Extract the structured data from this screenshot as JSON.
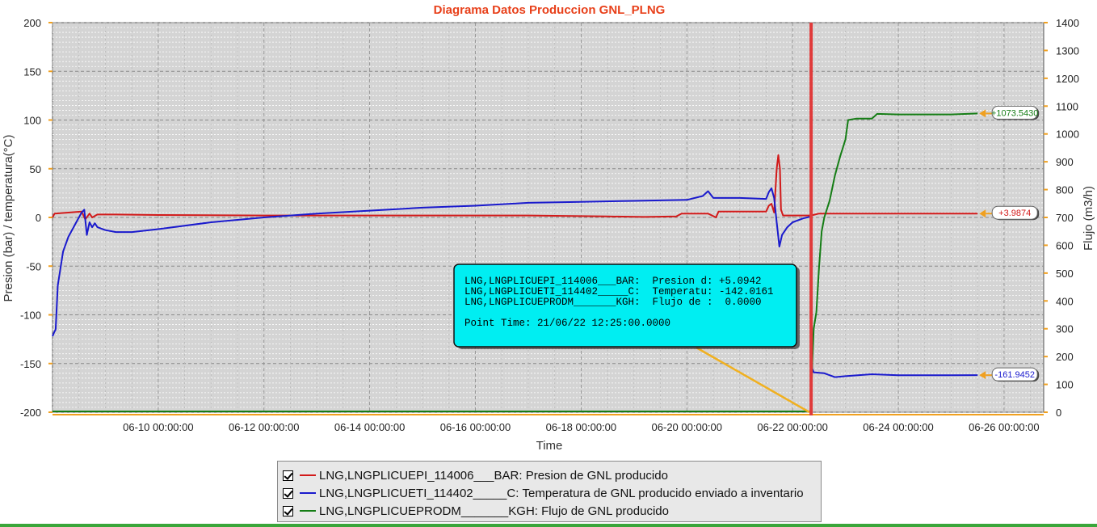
{
  "chart_data": {
    "type": "line",
    "title": "Diagrama Datos Produccion GNL_PLNG",
    "xlabel": "Time",
    "ylabel": "Presion (bar) / temperatura(°C)",
    "y2label": "Flujo (m3/h)",
    "x_ticks": [
      "06-10 00:00:00",
      "06-12 00:00:00",
      "06-14 00:00:00",
      "06-16 00:00:00",
      "06-18 00:00:00",
      "06-20 00:00:00",
      "06-22 00:00:00",
      "06-24 00:00:00",
      "06-26 00:00:00"
    ],
    "x_tick_days": [
      10,
      12,
      14,
      16,
      18,
      20,
      22,
      24,
      26
    ],
    "xlim_days": [
      8.0,
      26.75
    ],
    "y_ticks": [
      "200",
      "150",
      "100",
      "50",
      "0",
      "-50",
      "-100",
      "-150",
      "-200"
    ],
    "ylim": [
      -200,
      200
    ],
    "y2_ticks": [
      "1400",
      "1300",
      "1200",
      "1100",
      "1000",
      "900",
      "800",
      "700",
      "600",
      "500",
      "400",
      "300",
      "200",
      "100",
      "0"
    ],
    "y2lim": [
      0,
      1400
    ],
    "cursor_day": 22.35,
    "series": [
      {
        "name": "LNG,LNGPLICUEPI_114006___BAR",
        "color": "#d21a1a",
        "axis": "left",
        "end_label": "+3.9874",
        "points": [
          [
            8.0,
            0
          ],
          [
            8.04,
            4
          ],
          [
            8.3,
            5
          ],
          [
            8.55,
            6
          ],
          [
            8.62,
            -2
          ],
          [
            8.7,
            4
          ],
          [
            8.75,
            0
          ],
          [
            8.85,
            3
          ],
          [
            9.2,
            3
          ],
          [
            10,
            2.5
          ],
          [
            12,
            2
          ],
          [
            14,
            2
          ],
          [
            16,
            2
          ],
          [
            17,
            2
          ],
          [
            18.5,
            1
          ],
          [
            19.2,
            0.5
          ],
          [
            19.8,
            1
          ],
          [
            19.9,
            4
          ],
          [
            20.4,
            4
          ],
          [
            20.55,
            0
          ],
          [
            20.6,
            6
          ],
          [
            21.0,
            6
          ],
          [
            21.5,
            6
          ],
          [
            21.55,
            12
          ],
          [
            21.6,
            14
          ],
          [
            21.65,
            5
          ],
          [
            21.7,
            50
          ],
          [
            21.73,
            64
          ],
          [
            21.76,
            50
          ],
          [
            21.78,
            8
          ],
          [
            21.82,
            2
          ],
          [
            22.35,
            2
          ],
          [
            22.5,
            4
          ],
          [
            23,
            4
          ],
          [
            24,
            4
          ],
          [
            25,
            4
          ],
          [
            25.5,
            3.99
          ]
        ]
      },
      {
        "name": "LNG,LNGPLICUETI_114402_____C",
        "color": "#1a1acd",
        "axis": "left",
        "end_label": "-161.9452",
        "points": [
          [
            8.0,
            -122
          ],
          [
            8.03,
            -118
          ],
          [
            8.06,
            -115
          ],
          [
            8.1,
            -70
          ],
          [
            8.2,
            -35
          ],
          [
            8.3,
            -20
          ],
          [
            8.45,
            -5
          ],
          [
            8.55,
            5
          ],
          [
            8.6,
            8
          ],
          [
            8.65,
            -18
          ],
          [
            8.7,
            -5
          ],
          [
            8.75,
            -10
          ],
          [
            8.8,
            -6
          ],
          [
            8.85,
            -10
          ],
          [
            9.0,
            -13
          ],
          [
            9.2,
            -15
          ],
          [
            9.5,
            -15
          ],
          [
            10,
            -12
          ],
          [
            11,
            -5
          ],
          [
            12,
            0
          ],
          [
            13,
            4
          ],
          [
            14,
            7
          ],
          [
            15,
            10
          ],
          [
            16,
            12
          ],
          [
            17,
            15
          ],
          [
            18,
            16
          ],
          [
            19,
            17
          ],
          [
            20,
            18
          ],
          [
            20.3,
            22
          ],
          [
            20.4,
            27
          ],
          [
            20.5,
            20
          ],
          [
            21,
            20
          ],
          [
            21.5,
            19
          ],
          [
            21.55,
            26
          ],
          [
            21.6,
            30
          ],
          [
            21.65,
            20
          ],
          [
            21.7,
            -5
          ],
          [
            21.75,
            -30
          ],
          [
            21.8,
            -18
          ],
          [
            21.9,
            -10
          ],
          [
            22.0,
            -5
          ],
          [
            22.2,
            -1
          ],
          [
            22.35,
            1
          ],
          [
            22.37,
            -155
          ],
          [
            22.4,
            -159
          ],
          [
            22.6,
            -160
          ],
          [
            22.8,
            -164
          ],
          [
            23,
            -163
          ],
          [
            23.5,
            -161
          ],
          [
            24,
            -162
          ],
          [
            24.5,
            -162
          ],
          [
            25,
            -162
          ],
          [
            25.5,
            -161.95
          ]
        ]
      },
      {
        "name": "LNG,LNGPLICUEPRODM_______KGH",
        "color": "#157d15",
        "axis": "right",
        "end_label": "+1073.5430",
        "points": [
          [
            8.0,
            3
          ],
          [
            22.35,
            3
          ],
          [
            22.37,
            170
          ],
          [
            22.4,
            300
          ],
          [
            22.45,
            360
          ],
          [
            22.5,
            520
          ],
          [
            22.55,
            650
          ],
          [
            22.6,
            700
          ],
          [
            22.7,
            760
          ],
          [
            22.8,
            850
          ],
          [
            22.9,
            920
          ],
          [
            23.0,
            980
          ],
          [
            23.05,
            1050
          ],
          [
            23.2,
            1055
          ],
          [
            23.5,
            1055
          ],
          [
            23.6,
            1072
          ],
          [
            24,
            1070
          ],
          [
            24.5,
            1070
          ],
          [
            25,
            1070
          ],
          [
            25.5,
            1073.5
          ]
        ]
      }
    ]
  },
  "tooltip": {
    "lines": [
      "LNG,LNGPLICUEPI_114006___BAR:  Presion d: +5.0942",
      "LNG,LNGPLICUETI_114402_____C:  Temperatu: -142.0161",
      "LNG,LNGPLICUEPRODM_______KGH:  Flujo de :  0.0000"
    ],
    "point_time": "Point Time: 21/06/22 12:25:00.0000"
  },
  "legend": {
    "items": [
      {
        "tag": "LNG,LNGPLICUEPI_114006___BAR:",
        "desc": "Presion de GNL producido",
        "color": "#d21a1a"
      },
      {
        "tag": "LNG,LNGPLICUETI_114402_____C:",
        "desc": "Temperatura de GNL producido enviado a inventario",
        "color": "#1a1acd"
      },
      {
        "tag": "LNG,LNGPLICUEPRODM_______KGH:",
        "desc": "Flujo de GNL producido",
        "color": "#157d15"
      }
    ]
  },
  "colors": {
    "title": "#e8401a",
    "grid_bg": "#d4d4d4",
    "tooltip_bg": "#00eef2",
    "cursor": "#e03a3a",
    "marker": "#f0a020"
  }
}
